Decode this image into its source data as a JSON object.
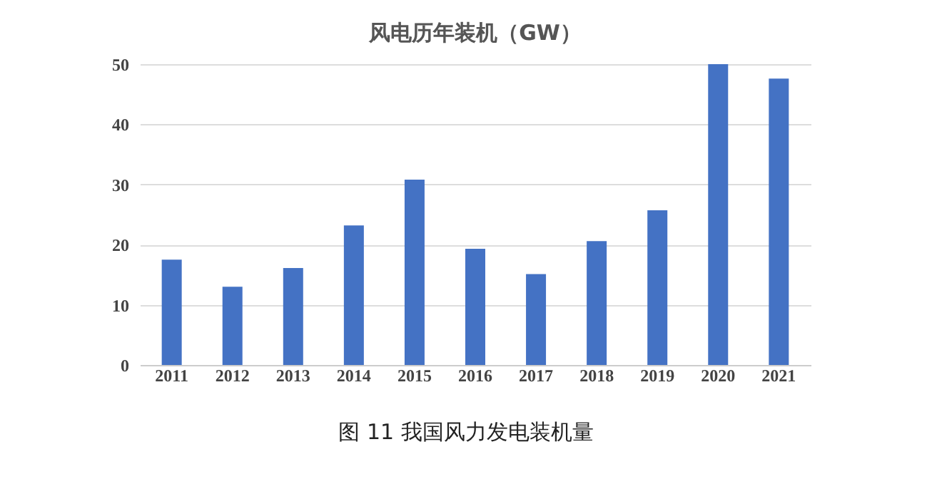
{
  "chart_data": {
    "type": "bar",
    "title": "风电历年装机（GW）",
    "categories": [
      "2011",
      "2012",
      "2013",
      "2014",
      "2015",
      "2016",
      "2017",
      "2018",
      "2019",
      "2020",
      "2021"
    ],
    "values": [
      17.5,
      13.0,
      16.1,
      23.2,
      30.8,
      19.3,
      15.1,
      20.6,
      25.7,
      50.0,
      47.6
    ],
    "color": "#4472c4",
    "ylim": [
      0,
      50
    ],
    "yticks": [
      0,
      10,
      20,
      30,
      40,
      50
    ],
    "grid": "y",
    "annotations": [
      "图 11  我国风力发电装机量"
    ]
  }
}
